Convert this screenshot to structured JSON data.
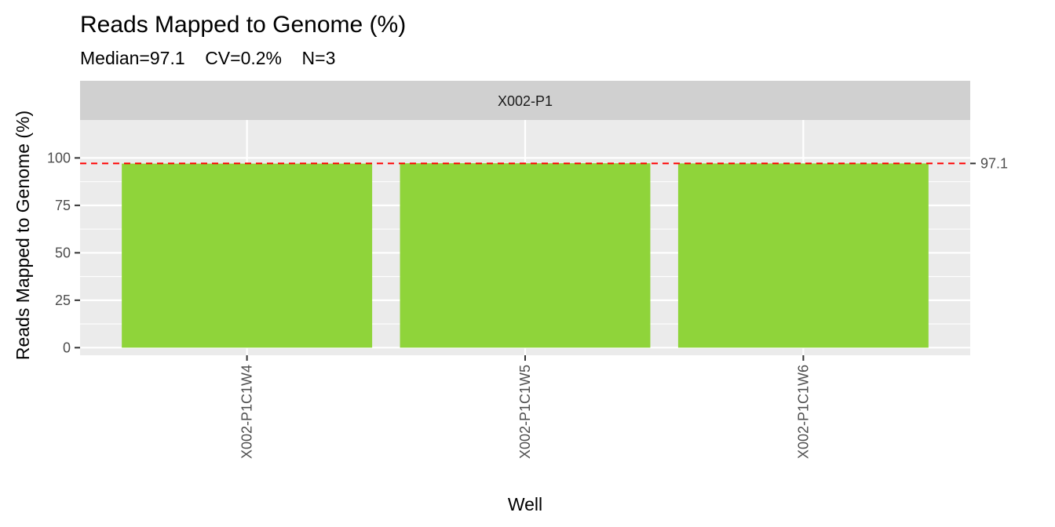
{
  "chart_data": {
    "type": "bar",
    "title": "Reads Mapped to Genome (%)",
    "subtitle": "Median=97.1    CV=0.2%    N=3",
    "facet_label": "X002-P1",
    "xlabel": "Well",
    "ylabel": "Reads Mapped to Genome (%)",
    "categories": [
      "X002-P1C1W4",
      "X002-P1C1W5",
      "X002-P1C1W6"
    ],
    "values": [
      97.0,
      97.2,
      97.1
    ],
    "bar_color": "#8fd43a",
    "ylim": [
      -4,
      120
    ],
    "yticks": [
      0,
      25,
      50,
      75,
      100
    ],
    "reference_line": {
      "value": 97.1,
      "label": "97.1",
      "color": "#ff0000"
    },
    "grid": true,
    "legend": "none"
  }
}
